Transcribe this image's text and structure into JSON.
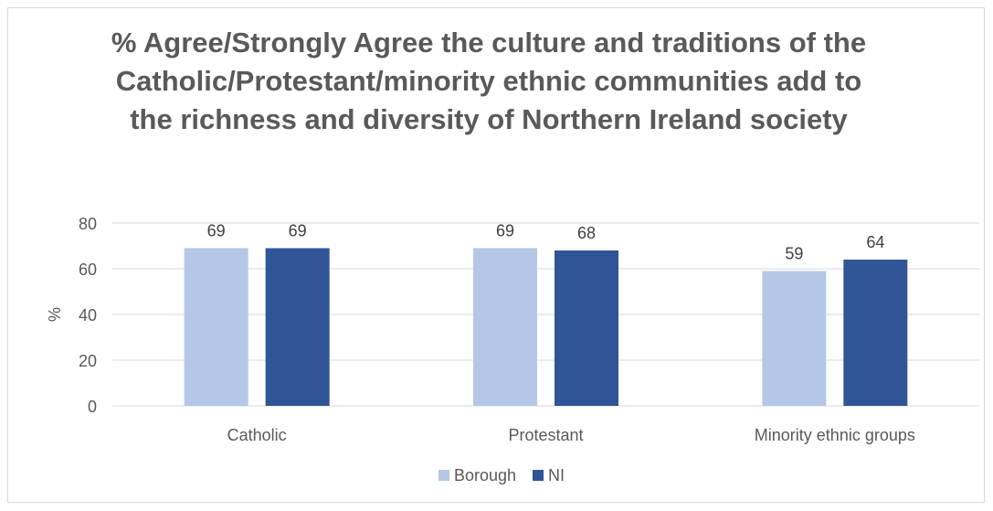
{
  "chart_data": {
    "type": "bar",
    "title": "% Agree/Strongly Agree the culture and traditions of the Catholic/Protestant/minority ethnic communities add to the richness and diversity of Northern Ireland society",
    "xlabel": "",
    "ylabel": "%",
    "ylim": [
      0,
      80
    ],
    "yticks": [
      0,
      20,
      40,
      60,
      80
    ],
    "categories": [
      "Catholic",
      "Protestant",
      "Minority ethnic groups"
    ],
    "series": [
      {
        "name": "Borough",
        "values": [
          69,
          69,
          59
        ],
        "color": "#b4c7e7"
      },
      {
        "name": "NI",
        "values": [
          69,
          68,
          64
        ],
        "color": "#2f5597"
      }
    ],
    "grid": true,
    "legend": "bottom"
  }
}
